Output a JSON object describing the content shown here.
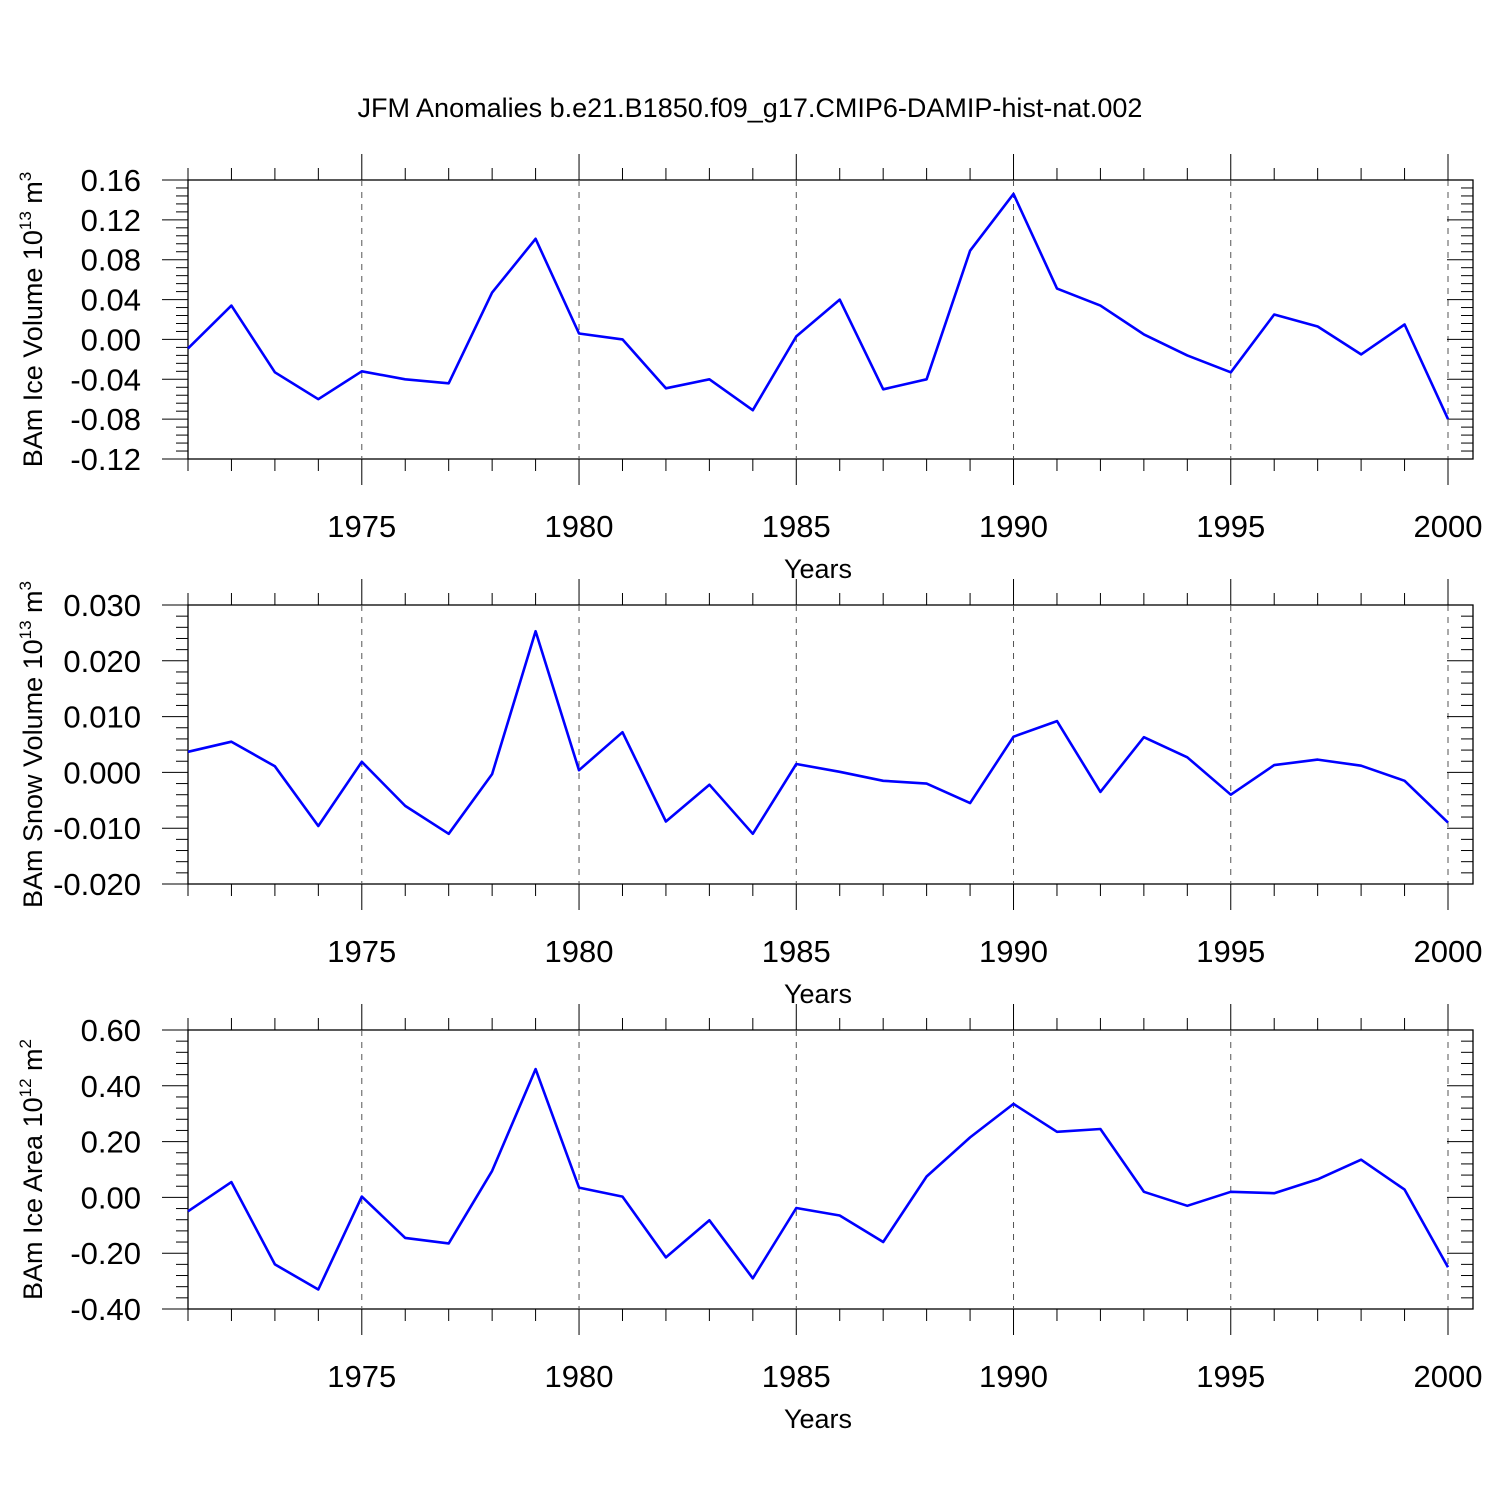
{
  "title": "JFM Anomalies b.e21.B1850.f09_g17.CMIP6-DAMIP-hist-nat.002",
  "colors": {
    "line": "#0000ff",
    "axis": "#000000",
    "grid": "#555555"
  },
  "chart_data": [
    {
      "type": "line",
      "ylabel": "BAm Ice Volume 10",
      "ylabel_exp": "13",
      "ylabel_unit": " m",
      "ylabel_unit_exp": "3",
      "xlabel": "Years",
      "xlim": [
        1971,
        2000
      ],
      "ylim": [
        -0.12,
        0.16
      ],
      "yticks": [
        -0.12,
        -0.08,
        -0.04,
        0.0,
        0.04,
        0.08,
        0.12,
        0.16
      ],
      "ytick_labels": [
        "-0.12",
        "-0.08",
        "-0.04",
        "0.00",
        "0.04",
        "0.08",
        "0.12",
        "0.16"
      ],
      "xticks": [
        1975,
        1980,
        1985,
        1990,
        1995,
        2000
      ],
      "xtick_labels": [
        "1975",
        "1980",
        "1985",
        "1990",
        "1995",
        "2000"
      ],
      "grid": "dashed vertical at major x ticks",
      "x": [
        1971,
        1972,
        1973,
        1974,
        1975,
        1976,
        1977,
        1978,
        1979,
        1980,
        1981,
        1982,
        1983,
        1984,
        1985,
        1986,
        1987,
        1988,
        1989,
        1990,
        1991,
        1992,
        1993,
        1994,
        1995,
        1996,
        1997,
        1998,
        1999,
        2000
      ],
      "y": [
        -0.009,
        0.034,
        -0.033,
        -0.06,
        -0.032,
        -0.04,
        -0.044,
        0.047,
        0.101,
        0.006,
        0.0,
        -0.049,
        -0.04,
        -0.071,
        0.003,
        0.04,
        -0.05,
        -0.04,
        0.089,
        0.146,
        0.051,
        0.034,
        0.005,
        -0.016,
        -0.033,
        0.025,
        0.013,
        -0.015,
        0.015,
        -0.08
      ]
    },
    {
      "type": "line",
      "ylabel": "BAm Snow Volume 10",
      "ylabel_exp": "13",
      "ylabel_unit": " m",
      "ylabel_unit_exp": "3",
      "xlabel": "Years",
      "xlim": [
        1971,
        2000
      ],
      "ylim": [
        -0.02,
        0.03
      ],
      "yticks": [
        -0.02,
        -0.01,
        0.0,
        0.01,
        0.02,
        0.03
      ],
      "ytick_labels": [
        "-0.020",
        "-0.010",
        "0.000",
        "0.010",
        "0.020",
        "0.030"
      ],
      "xticks": [
        1975,
        1980,
        1985,
        1990,
        1995,
        2000
      ],
      "xtick_labels": [
        "1975",
        "1980",
        "1985",
        "1990",
        "1995",
        "2000"
      ],
      "grid": "dashed vertical at major x ticks",
      "x": [
        1971,
        1972,
        1973,
        1974,
        1975,
        1976,
        1977,
        1978,
        1979,
        1980,
        1981,
        1982,
        1983,
        1984,
        1985,
        1986,
        1987,
        1988,
        1989,
        1990,
        1991,
        1992,
        1993,
        1994,
        1995,
        1996,
        1997,
        1998,
        1999,
        2000
      ],
      "y": [
        0.0037,
        0.0055,
        0.0011,
        -0.0096,
        0.0019,
        -0.006,
        -0.011,
        -0.0003,
        0.0253,
        0.0004,
        0.0072,
        -0.0088,
        -0.0022,
        -0.011,
        0.0015,
        0.0001,
        -0.0015,
        -0.002,
        -0.0055,
        0.0064,
        0.0092,
        -0.0035,
        0.0063,
        0.0027,
        -0.004,
        0.0013,
        0.0023,
        0.0012,
        -0.0015,
        -0.009
      ]
    },
    {
      "type": "line",
      "ylabel": "BAm Ice Area 10",
      "ylabel_exp": "12",
      "ylabel_unit": " m",
      "ylabel_unit_exp": "2",
      "xlabel": "Years",
      "xlim": [
        1971,
        2000
      ],
      "ylim": [
        -0.4,
        0.6
      ],
      "yticks": [
        -0.4,
        -0.2,
        0.0,
        0.2,
        0.4,
        0.6
      ],
      "ytick_labels": [
        "-0.40",
        "-0.20",
        "0.00",
        "0.20",
        "0.40",
        "0.60"
      ],
      "xticks": [
        1975,
        1980,
        1985,
        1990,
        1995,
        2000
      ],
      "xtick_labels": [
        "1975",
        "1980",
        "1985",
        "1990",
        "1995",
        "2000"
      ],
      "grid": "dashed vertical at major x ticks",
      "x": [
        1971,
        1972,
        1973,
        1974,
        1975,
        1976,
        1977,
        1978,
        1979,
        1980,
        1981,
        1982,
        1983,
        1984,
        1985,
        1986,
        1987,
        1988,
        1989,
        1990,
        1991,
        1992,
        1993,
        1994,
        1995,
        1996,
        1997,
        1998,
        1999,
        2000
      ],
      "y": [
        -0.05,
        0.055,
        -0.24,
        -0.33,
        0.003,
        -0.145,
        -0.165,
        0.095,
        0.46,
        0.035,
        0.003,
        -0.215,
        -0.082,
        -0.29,
        -0.038,
        -0.065,
        -0.16,
        0.075,
        0.215,
        0.335,
        0.235,
        0.245,
        0.02,
        -0.03,
        0.02,
        0.015,
        0.065,
        0.135,
        0.028,
        -0.25
      ]
    }
  ]
}
